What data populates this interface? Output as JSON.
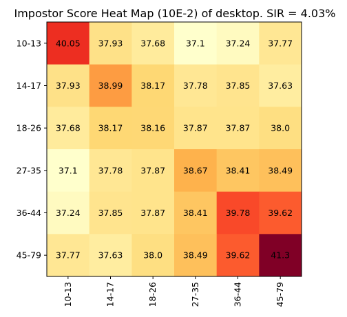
{
  "chart_data": {
    "type": "heatmap",
    "title": "Impostor Score Heat Map (10E-2) of desktop. SIR = 4.03%",
    "x_categories": [
      "10-13",
      "14-17",
      "18-26",
      "27-35",
      "36-44",
      "45-79"
    ],
    "y_categories": [
      "10-13",
      "14-17",
      "18-26",
      "27-35",
      "36-44",
      "45-79"
    ],
    "values": [
      [
        40.05,
        37.93,
        37.68,
        37.1,
        37.24,
        37.77
      ],
      [
        37.93,
        38.99,
        38.17,
        37.78,
        37.85,
        37.63
      ],
      [
        37.68,
        38.17,
        38.16,
        37.87,
        37.87,
        38.0
      ],
      [
        37.1,
        37.78,
        37.87,
        38.67,
        38.41,
        38.49
      ],
      [
        37.24,
        37.85,
        37.87,
        38.41,
        39.78,
        39.62
      ],
      [
        37.77,
        37.63,
        38.0,
        38.49,
        39.62,
        41.3
      ]
    ],
    "value_labels": [
      [
        "40.05",
        "37.93",
        "37.68",
        "37.1",
        "37.24",
        "37.77"
      ],
      [
        "37.93",
        "38.99",
        "38.17",
        "37.78",
        "37.85",
        "37.63"
      ],
      [
        "37.68",
        "38.17",
        "38.16",
        "37.87",
        "37.87",
        "38.0"
      ],
      [
        "37.1",
        "37.78",
        "37.87",
        "38.67",
        "38.41",
        "38.49"
      ],
      [
        "37.24",
        "37.85",
        "37.87",
        "38.41",
        "39.78",
        "39.62"
      ],
      [
        "37.77",
        "37.63",
        "38.0",
        "38.49",
        "39.62",
        "41.3"
      ]
    ],
    "colormap": "YlOrRd",
    "vmin": 37.1,
    "vmax": 41.3,
    "x_tick_rotation": "vertical",
    "grid": false,
    "legend": "none"
  }
}
